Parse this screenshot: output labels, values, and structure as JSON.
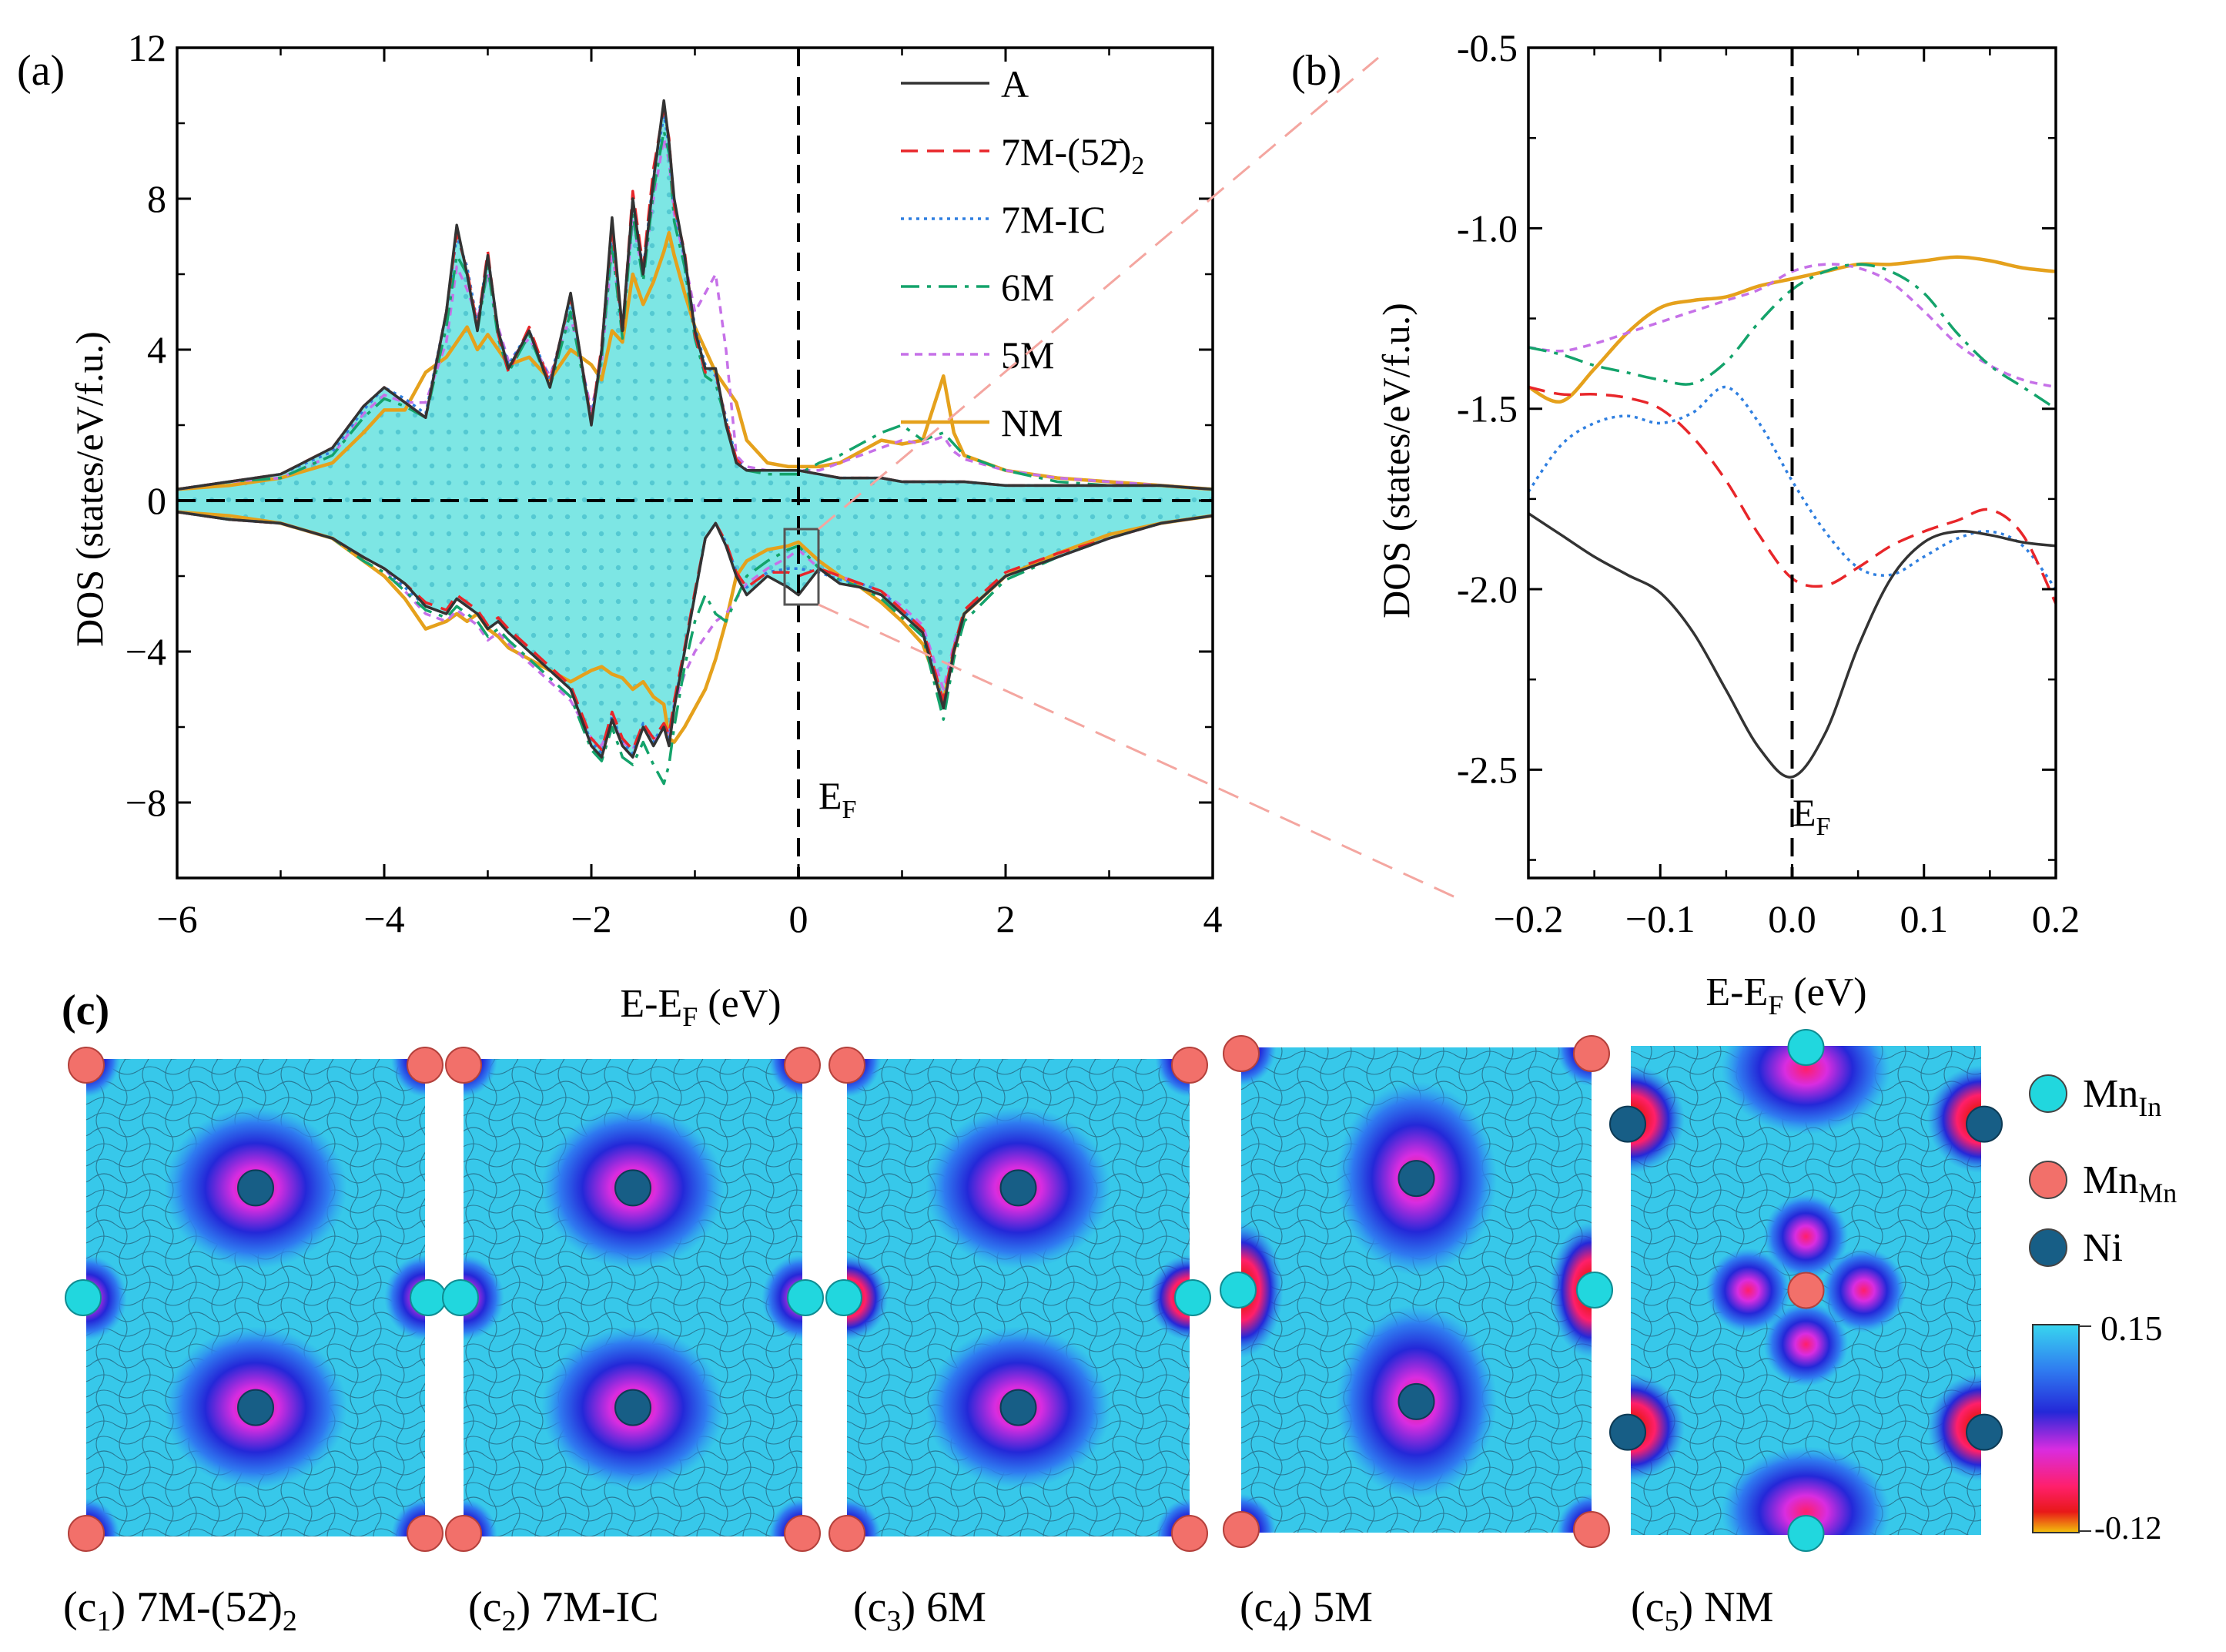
{
  "figure": {
    "panel_labels": {
      "a": "(a)",
      "b": "(b)",
      "c": "(c)"
    },
    "fermi_label": "E",
    "fermi_sub": "F"
  },
  "colors": {
    "A": "#333333",
    "7M-52": "#e8262a",
    "7M-IC": "#2f7fe0",
    "6M": "#14a36b",
    "5M": "#c671e8",
    "NM": "#e5a11c",
    "fill": "#7de6e4",
    "connector": "#f4a6a0"
  },
  "chart_data": [
    {
      "id": "a",
      "type": "line",
      "title": "",
      "xlabel": "E-E_F (eV)",
      "ylabel": "DOS (states/eV/f.u.)",
      "xlim": [
        -6,
        4
      ],
      "ylim": [
        -10,
        12
      ],
      "xticks": [
        -6,
        -4,
        -2,
        0,
        2,
        4
      ],
      "yticks": [
        -8,
        -4,
        0,
        4,
        8,
        12
      ],
      "xtick_labels": [
        "−6",
        "−4",
        "−2",
        "0",
        "2",
        "4"
      ],
      "ytick_labels": [
        "−8",
        "−4",
        "0",
        "4",
        "8",
        "12"
      ],
      "legend": {
        "position": "top-right",
        "entries": [
          {
            "key": "A",
            "label": "A",
            "sub": "",
            "style": "solid"
          },
          {
            "key": "7M-52",
            "label": "7M-(52̄)",
            "sub": "2",
            "style": "dashed"
          },
          {
            "key": "7M-IC",
            "label": "7M-IC",
            "sub": "",
            "style": "dotted"
          },
          {
            "key": "6M",
            "label": "6M",
            "sub": "",
            "style": "dashdot"
          },
          {
            "key": "5M",
            "label": "5M",
            "sub": "",
            "style": "shortdash"
          },
          {
            "key": "NM",
            "label": "NM",
            "sub": "",
            "style": "solid-thick"
          }
        ]
      },
      "x": [
        -6,
        -5.5,
        -5,
        -4.5,
        -4.2,
        -4,
        -3.8,
        -3.6,
        -3.4,
        -3.3,
        -3.2,
        -3.1,
        -3.0,
        -2.9,
        -2.8,
        -2.6,
        -2.4,
        -2.2,
        -2.0,
        -1.9,
        -1.8,
        -1.7,
        -1.6,
        -1.5,
        -1.4,
        -1.3,
        -1.25,
        -1.2,
        -1.1,
        -1.0,
        -0.9,
        -0.8,
        -0.7,
        -0.6,
        -0.5,
        -0.3,
        -0.1,
        0,
        0.2,
        0.4,
        0.6,
        0.8,
        1.0,
        1.2,
        1.4,
        1.5,
        1.6,
        2.0,
        2.5,
        3.0,
        3.5,
        4.0
      ],
      "series": [
        {
          "name": "A",
          "key": "A",
          "up": [
            0.3,
            0.5,
            0.7,
            1.4,
            2.5,
            3.0,
            2.6,
            2.2,
            5.0,
            7.3,
            6.0,
            4.5,
            6.5,
            4.5,
            3.5,
            4.5,
            3.0,
            5.5,
            2.0,
            4.0,
            7.5,
            4.5,
            8.0,
            6.0,
            8.5,
            10.6,
            9.5,
            8.0,
            6.5,
            4.5,
            3.5,
            3.5,
            2.0,
            1.0,
            0.8,
            0.8,
            0.8,
            0.8,
            0.7,
            0.6,
            0.6,
            0.6,
            0.5,
            0.5,
            0.5,
            0.5,
            0.5,
            0.4,
            0.4,
            0.4,
            0.4,
            0.3
          ],
          "down": [
            -0.3,
            -0.5,
            -0.6,
            -1.0,
            -1.5,
            -1.8,
            -2.2,
            -2.8,
            -3.0,
            -2.6,
            -2.8,
            -3.0,
            -3.4,
            -3.2,
            -3.5,
            -4.0,
            -4.5,
            -5.0,
            -6.5,
            -6.8,
            -5.8,
            -6.5,
            -6.8,
            -6.0,
            -6.5,
            -6.0,
            -6.5,
            -5.5,
            -4.0,
            -2.5,
            -1.0,
            -0.6,
            -1.2,
            -2.0,
            -2.5,
            -2.0,
            -2.3,
            -2.5,
            -1.8,
            -2.2,
            -2.3,
            -2.5,
            -3.0,
            -3.5,
            -5.5,
            -4.0,
            -3.0,
            -2.0,
            -1.5,
            -1.0,
            -0.6,
            -0.4
          ]
        },
        {
          "name": "7M-(52̄)2",
          "key": "7M-52",
          "up": [
            0.3,
            0.5,
            0.7,
            1.4,
            2.5,
            3.0,
            2.6,
            2.2,
            5.0,
            7.1,
            6.1,
            4.6,
            6.6,
            4.4,
            3.4,
            4.6,
            3.1,
            5.4,
            2.1,
            4.1,
            7.3,
            4.4,
            8.2,
            6.2,
            8.8,
            10.4,
            9.6,
            7.8,
            6.6,
            4.4,
            3.4,
            3.4,
            2.1,
            1.1,
            0.8,
            0.8,
            0.8,
            0.8,
            0.7,
            0.6,
            0.6,
            0.6,
            0.5,
            0.5,
            0.5,
            0.5,
            0.5,
            0.4,
            0.4,
            0.4,
            0.4,
            0.3
          ],
          "down": [
            -0.3,
            -0.5,
            -0.6,
            -1.0,
            -1.5,
            -1.8,
            -2.2,
            -2.7,
            -2.9,
            -2.5,
            -2.7,
            -2.9,
            -3.3,
            -3.1,
            -3.4,
            -3.9,
            -4.4,
            -4.9,
            -6.3,
            -6.6,
            -5.6,
            -6.3,
            -6.6,
            -5.9,
            -6.3,
            -5.9,
            -6.2,
            -5.3,
            -3.9,
            -2.4,
            -1.0,
            -0.6,
            -1.1,
            -1.9,
            -2.3,
            -1.9,
            -1.9,
            -2.0,
            -1.8,
            -2.0,
            -2.2,
            -2.4,
            -2.9,
            -3.4,
            -5.3,
            -3.9,
            -2.9,
            -1.9,
            -1.4,
            -1.0,
            -0.6,
            -0.4
          ]
        },
        {
          "name": "7M-IC",
          "key": "7M-IC",
          "up": [
            0.3,
            0.5,
            0.7,
            1.3,
            2.4,
            3.0,
            2.7,
            2.3,
            5.0,
            7.0,
            6.2,
            4.7,
            6.5,
            4.5,
            3.6,
            4.5,
            3.2,
            5.3,
            2.2,
            4.0,
            7.2,
            4.5,
            8.0,
            6.1,
            8.6,
            10.2,
            9.4,
            7.8,
            6.4,
            4.6,
            3.6,
            3.3,
            2.2,
            1.1,
            0.8,
            0.8,
            0.8,
            0.8,
            0.7,
            0.6,
            0.6,
            0.6,
            0.5,
            0.5,
            0.5,
            0.5,
            0.5,
            0.4,
            0.4,
            0.4,
            0.4,
            0.3
          ],
          "down": [
            -0.3,
            -0.5,
            -0.6,
            -1.0,
            -1.5,
            -1.8,
            -2.3,
            -2.8,
            -3.0,
            -2.6,
            -2.8,
            -3.0,
            -3.4,
            -3.2,
            -3.5,
            -4.0,
            -4.5,
            -5.0,
            -6.4,
            -6.7,
            -5.7,
            -6.4,
            -6.7,
            -5.9,
            -6.4,
            -5.9,
            -6.3,
            -5.4,
            -4.0,
            -2.5,
            -1.0,
            -0.6,
            -1.1,
            -1.9,
            -2.3,
            -1.9,
            -1.8,
            -1.8,
            -1.9,
            -2.1,
            -2.2,
            -2.4,
            -2.9,
            -3.4,
            -5.4,
            -4.0,
            -3.0,
            -2.0,
            -1.5,
            -1.0,
            -0.6,
            -0.4
          ]
        },
        {
          "name": "6M",
          "key": "6M",
          "up": [
            0.3,
            0.5,
            0.6,
            1.2,
            2.2,
            2.7,
            2.5,
            2.2,
            4.6,
            6.5,
            6.0,
            4.5,
            6.2,
            4.3,
            3.4,
            4.4,
            3.0,
            5.0,
            2.1,
            3.8,
            6.8,
            4.3,
            7.6,
            5.8,
            8.2,
            9.8,
            9.2,
            7.4,
            6.2,
            4.3,
            3.3,
            3.1,
            2.1,
            1.0,
            0.8,
            0.7,
            0.7,
            0.7,
            1.0,
            1.2,
            1.5,
            1.8,
            2.0,
            1.6,
            1.8,
            1.5,
            1.2,
            0.8,
            0.5,
            0.4,
            0.4,
            0.3
          ],
          "down": [
            -0.3,
            -0.5,
            -0.6,
            -1.0,
            -1.6,
            -1.9,
            -2.4,
            -2.9,
            -3.1,
            -2.8,
            -3.0,
            -3.2,
            -3.6,
            -3.4,
            -3.7,
            -4.2,
            -4.7,
            -5.2,
            -6.6,
            -6.9,
            -6.0,
            -6.8,
            -7.0,
            -6.4,
            -7.0,
            -7.5,
            -7.0,
            -6.0,
            -4.4,
            -3.2,
            -2.5,
            -3.0,
            -3.2,
            -2.6,
            -2.0,
            -1.6,
            -1.3,
            -1.2,
            -1.8,
            -2.1,
            -2.3,
            -2.6,
            -3.1,
            -3.6,
            -5.8,
            -4.2,
            -3.2,
            -2.1,
            -1.5,
            -1.0,
            -0.6,
            -0.4
          ]
        },
        {
          "name": "5M",
          "key": "5M",
          "up": [
            0.3,
            0.5,
            0.6,
            1.2,
            2.3,
            2.8,
            2.6,
            2.6,
            4.2,
            6.2,
            5.6,
            4.8,
            6.0,
            4.6,
            3.7,
            4.3,
            3.3,
            4.9,
            2.4,
            3.7,
            6.6,
            4.6,
            7.4,
            6.0,
            8.0,
            9.6,
            9.0,
            7.6,
            6.4,
            5.0,
            5.5,
            6.0,
            4.0,
            1.2,
            0.9,
            0.8,
            0.8,
            0.8,
            0.8,
            1.0,
            1.2,
            1.4,
            1.6,
            1.5,
            1.7,
            1.3,
            1.1,
            0.8,
            0.6,
            0.5,
            0.4,
            0.3
          ],
          "down": [
            -0.3,
            -0.5,
            -0.6,
            -1.0,
            -1.5,
            -1.8,
            -2.4,
            -3.0,
            -3.2,
            -2.9,
            -3.1,
            -3.3,
            -3.7,
            -3.5,
            -3.8,
            -4.3,
            -4.8,
            -5.3,
            -6.3,
            -6.5,
            -5.8,
            -6.4,
            -6.6,
            -6.0,
            -6.4,
            -6.0,
            -6.2,
            -5.4,
            -4.6,
            -4.0,
            -3.6,
            -3.2,
            -3.0,
            -2.6,
            -2.2,
            -1.8,
            -1.5,
            -1.3,
            -1.8,
            -2.0,
            -2.2,
            -2.4,
            -2.8,
            -3.3,
            -5.0,
            -3.8,
            -3.0,
            -2.0,
            -1.5,
            -1.0,
            -0.6,
            -0.4
          ]
        },
        {
          "name": "NM",
          "key": "NM",
          "up": [
            0.3,
            0.4,
            0.6,
            1.0,
            1.8,
            2.4,
            2.4,
            3.4,
            3.8,
            4.2,
            4.6,
            4.0,
            4.4,
            4.0,
            3.6,
            3.8,
            3.2,
            4.0,
            3.6,
            3.2,
            4.5,
            4.2,
            6.0,
            5.2,
            5.8,
            6.6,
            7.1,
            6.5,
            5.5,
            4.6,
            4.0,
            3.4,
            3.0,
            2.6,
            1.6,
            1.0,
            0.9,
            0.9,
            0.9,
            1.0,
            1.3,
            1.6,
            1.5,
            1.6,
            3.3,
            1.8,
            1.2,
            0.8,
            0.6,
            0.5,
            0.4,
            0.3
          ],
          "down": [
            -0.3,
            -0.4,
            -0.6,
            -1.0,
            -1.6,
            -2.0,
            -2.6,
            -3.4,
            -3.2,
            -3.0,
            -3.2,
            -3.0,
            -3.4,
            -3.6,
            -3.9,
            -4.2,
            -4.5,
            -4.8,
            -4.5,
            -4.4,
            -4.6,
            -4.7,
            -5.0,
            -4.8,
            -5.2,
            -5.4,
            -6.3,
            -6.4,
            -6.0,
            -5.5,
            -5.0,
            -4.2,
            -3.2,
            -2.0,
            -1.6,
            -1.3,
            -1.2,
            -1.1,
            -1.6,
            -2.0,
            -2.3,
            -2.7,
            -3.2,
            -3.8,
            -5.3,
            -4.0,
            -3.0,
            -2.0,
            -1.4,
            -0.9,
            -0.6,
            -0.4
          ]
        }
      ]
    },
    {
      "id": "b",
      "type": "line",
      "title": "",
      "xlabel": "E-E_F (eV)",
      "ylabel": "DOS (states/eV/f.u.)",
      "xlim": [
        -0.2,
        0.2
      ],
      "ylim": [
        -2.8,
        -0.5
      ],
      "xticks": [
        -0.2,
        -0.1,
        0.0,
        0.1,
        0.2
      ],
      "yticks": [
        -2.5,
        -2.0,
        -1.5,
        -1.0,
        -0.5
      ],
      "xtick_labels": [
        "−0.2",
        "−0.1",
        "0.0",
        "0.1",
        "0.2"
      ],
      "ytick_labels": [
        "-2.5",
        "-2.0",
        "-1.5",
        "-1.0",
        "-0.5"
      ],
      "x": [
        -0.2,
        -0.175,
        -0.15,
        -0.125,
        -0.1,
        -0.075,
        -0.05,
        -0.025,
        0.0,
        0.025,
        0.05,
        0.075,
        0.1,
        0.125,
        0.15,
        0.175,
        0.2
      ],
      "series": [
        {
          "name": "A",
          "key": "A",
          "values": [
            -1.79,
            -1.85,
            -1.91,
            -1.96,
            -2.01,
            -2.12,
            -2.28,
            -2.44,
            -2.52,
            -2.4,
            -2.16,
            -1.97,
            -1.87,
            -1.84,
            -1.85,
            -1.87,
            -1.88
          ]
        },
        {
          "name": "7M-(52̄)2",
          "key": "7M-52",
          "values": [
            -1.44,
            -1.46,
            -1.46,
            -1.47,
            -1.5,
            -1.58,
            -1.7,
            -1.85,
            -1.97,
            -1.99,
            -1.94,
            -1.88,
            -1.84,
            -1.81,
            -1.78,
            -1.85,
            -2.04
          ]
        },
        {
          "name": "7M-IC",
          "key": "7M-IC",
          "values": [
            -1.73,
            -1.6,
            -1.54,
            -1.52,
            -1.54,
            -1.51,
            -1.44,
            -1.54,
            -1.7,
            -1.84,
            -1.94,
            -1.96,
            -1.91,
            -1.86,
            -1.84,
            -1.88,
            -2.0
          ]
        },
        {
          "name": "6M",
          "key": "6M",
          "values": [
            -1.33,
            -1.35,
            -1.38,
            -1.4,
            -1.42,
            -1.43,
            -1.37,
            -1.26,
            -1.17,
            -1.12,
            -1.1,
            -1.12,
            -1.18,
            -1.29,
            -1.38,
            -1.44,
            -1.5
          ]
        },
        {
          "name": "5M",
          "key": "5M",
          "values": [
            -1.33,
            -1.34,
            -1.32,
            -1.29,
            -1.26,
            -1.23,
            -1.2,
            -1.17,
            -1.12,
            -1.1,
            -1.11,
            -1.15,
            -1.23,
            -1.32,
            -1.38,
            -1.42,
            -1.44
          ]
        },
        {
          "name": "NM",
          "key": "NM",
          "values": [
            -1.44,
            -1.48,
            -1.39,
            -1.29,
            -1.22,
            -1.2,
            -1.19,
            -1.16,
            -1.14,
            -1.12,
            -1.1,
            -1.1,
            -1.09,
            -1.08,
            -1.09,
            -1.11,
            -1.12
          ]
        }
      ]
    },
    {
      "id": "c",
      "type": "heatmap",
      "title": "",
      "colorbar": {
        "max": 0.15,
        "min": -0.12,
        "max_label": "0.15",
        "min_label": "-0.12"
      },
      "atoms_legend": [
        {
          "key": "MnIn",
          "label": "Mn",
          "sub": "In",
          "color": "#21d7de"
        },
        {
          "key": "MnMn",
          "label": "Mn",
          "sub": "Mn",
          "color": "#f2706a"
        },
        {
          "key": "Ni",
          "label": "Ni",
          "sub": "",
          "color": "#175e86"
        }
      ],
      "maps": [
        {
          "label": "(c",
          "label_sub": "1",
          "label_end": ")",
          "name": "7M-(52̄)",
          "name_sub": "2"
        },
        {
          "label": "(c",
          "label_sub": "2",
          "label_end": ")",
          "name": "7M-IC",
          "name_sub": ""
        },
        {
          "label": "(c",
          "label_sub": "3",
          "label_end": ")",
          "name": "6M",
          "name_sub": ""
        },
        {
          "label": "(c",
          "label_sub": "4",
          "label_end": ")",
          "name": "5M",
          "name_sub": ""
        },
        {
          "label": "(c",
          "label_sub": "5",
          "label_end": ")",
          "name": "NM",
          "name_sub": ""
        }
      ]
    }
  ]
}
